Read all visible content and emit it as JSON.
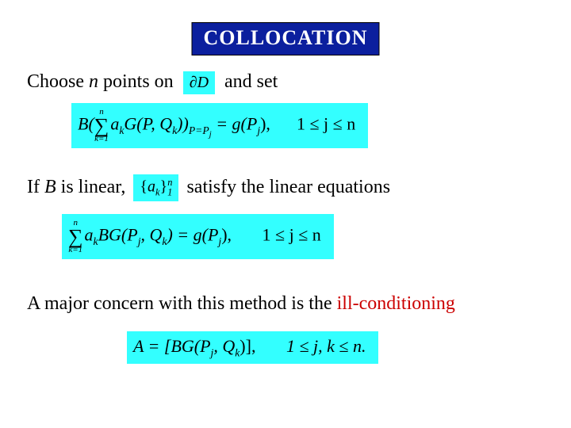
{
  "colors": {
    "title_bg": "#0b1f9e",
    "title_fg": "#ffffff",
    "eq_bg": "#33ffff",
    "eq_fg": "#000000",
    "text_fg": "#000000",
    "accent_fg": "#cc0000",
    "page_bg": "#ffffff"
  },
  "fontsizes": {
    "title": 26,
    "body": 24,
    "eq": 22,
    "eq_inline": 20
  },
  "title": "COLLOCATION",
  "line1": {
    "a": "Choose ",
    "n": "n",
    "b": " points on",
    "dD": "∂D",
    "c": "and set"
  },
  "eq1": {
    "pre": "B(",
    "sum_upper": "n",
    "sum_lower": "k=1",
    "term": "a",
    "term_sub": "k",
    "G": "G(P, Q",
    "Qsub": "k",
    "close": "))",
    "at_sub": "P=P",
    "at_sub_j": "j",
    "eq": " = g(P",
    "j2": "j",
    "tail1": "),",
    "range": "1 ≤ j ≤ n"
  },
  "line2": {
    "a": "If ",
    "B": "B",
    "b": " is linear,",
    "set_l": "{",
    "set_a": "a",
    "set_k": "k",
    "set_r": "}",
    "set_lo": "1",
    "set_hi": "n",
    "c": "satisfy the linear equations"
  },
  "eq2": {
    "sum_upper": "n",
    "sum_lower": "k=1",
    "a": "a",
    "k": "k",
    "BG": "BG(P",
    "j": "j",
    "comma": ", Q",
    "k2": "k",
    "after": ") = g(P",
    "j2": "j",
    "tail1": "),",
    "range": "1 ≤ j ≤ n"
  },
  "line3": {
    "a": "A major concern with this method is the ",
    "b": "ill-conditioning"
  },
  "eq3": {
    "A": "A = [BG(P",
    "j": "j",
    "comma": ", Q",
    "k": "k",
    "after": ")],",
    "range": "1 ≤ j, k ≤ n."
  }
}
